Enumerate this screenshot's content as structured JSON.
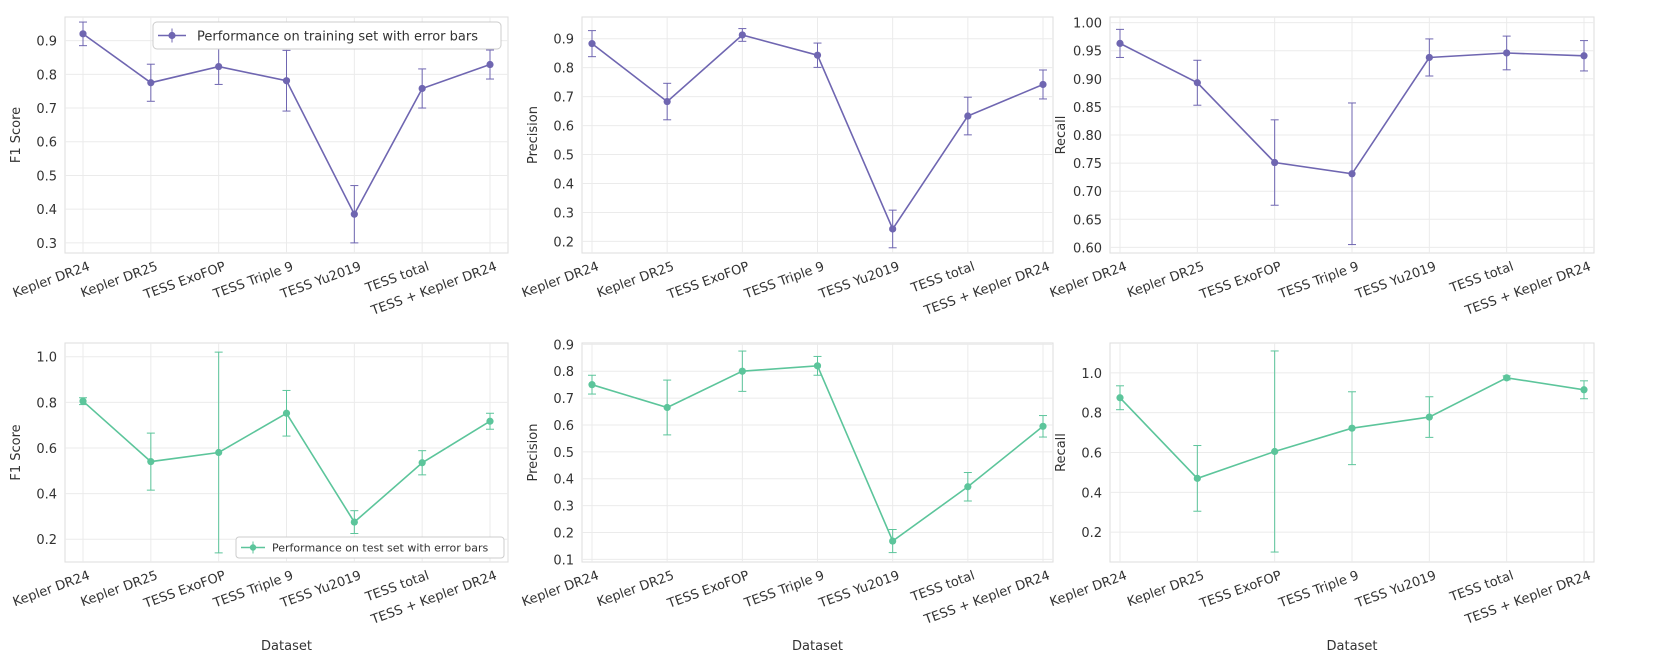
{
  "colors": {
    "train": "#6f66b1",
    "test": "#5cc59b",
    "grid": "#ebebeb",
    "frame": "#dddddd"
  },
  "legends": {
    "train": "Performance on training set with error bars",
    "test": "Performance on test set with error bars"
  },
  "chart_data": [
    {
      "type": "line",
      "title": "",
      "xlabel": "",
      "ylabel": "F1 Score",
      "categories": [
        "Kepler DR24",
        "Kepler DR25",
        "TESS ExoFOP",
        "TESS Triple 9",
        "TESS Yu2019",
        "TESS total",
        "TESS + Kepler DR24"
      ],
      "series": [
        {
          "name": "Performance on training set with error bars",
          "color": "#6f66b1",
          "values": [
            0.92,
            0.775,
            0.823,
            0.781,
            0.385,
            0.758,
            0.829
          ],
          "errors": [
            0.035,
            0.055,
            0.053,
            0.09,
            0.085,
            0.058,
            0.043
          ]
        }
      ],
      "ylim": [
        0.27,
        0.97
      ],
      "yticks": [
        0.3,
        0.4,
        0.5,
        0.6,
        0.7,
        0.8,
        0.9
      ],
      "ytick_labels": [
        "0.3",
        "0.4",
        "0.5",
        "0.6",
        "0.7",
        "0.8",
        "0.9"
      ],
      "legend": "top-right",
      "grid": true
    },
    {
      "type": "line",
      "title": "",
      "xlabel": "",
      "ylabel": "Precision",
      "categories": [
        "Kepler DR24",
        "Kepler DR25",
        "TESS ExoFOP",
        "TESS Triple 9",
        "TESS Yu2019",
        "TESS total",
        "TESS + Kepler DR24"
      ],
      "series": [
        {
          "name": "train",
          "color": "#6f66b1",
          "values": [
            0.883,
            0.683,
            0.913,
            0.843,
            0.243,
            0.633,
            0.742
          ],
          "errors": [
            0.045,
            0.063,
            0.022,
            0.042,
            0.065,
            0.065,
            0.05
          ]
        }
      ],
      "ylim": [
        0.16,
        0.975
      ],
      "yticks": [
        0.2,
        0.3,
        0.4,
        0.5,
        0.6,
        0.7,
        0.8,
        0.9
      ],
      "ytick_labels": [
        "0.2",
        "0.3",
        "0.4",
        "0.5",
        "0.6",
        "0.7",
        "0.8",
        "0.9"
      ],
      "legend": "none",
      "grid": true
    },
    {
      "type": "line",
      "title": "",
      "xlabel": "",
      "ylabel": "Recall",
      "categories": [
        "Kepler DR24",
        "Kepler DR25",
        "TESS ExoFOP",
        "TESS Triple 9",
        "TESS Yu2019",
        "TESS total",
        "TESS + Kepler DR24"
      ],
      "series": [
        {
          "name": "train",
          "color": "#6f66b1",
          "values": [
            0.963,
            0.893,
            0.751,
            0.731,
            0.938,
            0.946,
            0.941
          ],
          "errors": [
            0.025,
            0.04,
            0.076,
            0.126,
            0.033,
            0.03,
            0.027
          ]
        }
      ],
      "ylim": [
        0.59,
        1.01
      ],
      "yticks": [
        0.6,
        0.65,
        0.7,
        0.75,
        0.8,
        0.85,
        0.9,
        0.95,
        1.0
      ],
      "ytick_labels": [
        "0.60",
        "0.65",
        "0.70",
        "0.75",
        "0.80",
        "0.85",
        "0.90",
        "0.95",
        "1.00"
      ],
      "legend": "none",
      "grid": true
    },
    {
      "type": "line",
      "title": "",
      "xlabel": "Dataset",
      "ylabel": "F1 Score",
      "categories": [
        "Kepler DR24",
        "Kepler DR25",
        "TESS ExoFOP",
        "TESS Triple 9",
        "TESS Yu2019",
        "TESS total",
        "TESS + Kepler DR24"
      ],
      "series": [
        {
          "name": "Performance on test set with error bars",
          "color": "#5cc59b",
          "values": [
            0.805,
            0.54,
            0.58,
            0.752,
            0.275,
            0.535,
            0.717
          ],
          "errors": [
            0.015,
            0.125,
            0.44,
            0.1,
            0.05,
            0.053,
            0.035
          ]
        }
      ],
      "ylim": [
        0.1,
        1.06
      ],
      "yticks": [
        0.2,
        0.4,
        0.6,
        0.8,
        1.0
      ],
      "ytick_labels": [
        "0.2",
        "0.4",
        "0.6",
        "0.8",
        "1.0"
      ],
      "legend": "bottom-right",
      "grid": true
    },
    {
      "type": "line",
      "title": "",
      "xlabel": "Dataset",
      "ylabel": "Precision",
      "categories": [
        "Kepler DR24",
        "Kepler DR25",
        "TESS ExoFOP",
        "TESS Triple 9",
        "TESS Yu2019",
        "TESS total",
        "TESS + Kepler DR24"
      ],
      "series": [
        {
          "name": "test",
          "color": "#5cc59b",
          "values": [
            0.75,
            0.665,
            0.8,
            0.82,
            0.168,
            0.37,
            0.595
          ],
          "errors": [
            0.035,
            0.102,
            0.075,
            0.035,
            0.043,
            0.053,
            0.04
          ]
        }
      ],
      "ylim": [
        0.09,
        0.905
      ],
      "yticks": [
        0.1,
        0.2,
        0.3,
        0.4,
        0.5,
        0.6,
        0.7,
        0.8,
        0.9
      ],
      "ytick_labels": [
        "0.1",
        "0.2",
        "0.3",
        "0.4",
        "0.5",
        "0.6",
        "0.7",
        "0.8",
        "0.9"
      ],
      "legend": "none",
      "grid": true
    },
    {
      "type": "line",
      "title": "",
      "xlabel": "Dataset",
      "ylabel": "Recall",
      "categories": [
        "Kepler DR24",
        "Kepler DR25",
        "TESS ExoFOP",
        "TESS Triple 9",
        "TESS Yu2019",
        "TESS total",
        "TESS + Kepler DR24"
      ],
      "series": [
        {
          "name": "test",
          "color": "#5cc59b",
          "values": [
            0.875,
            0.47,
            0.605,
            0.722,
            0.778,
            0.975,
            0.915
          ],
          "errors": [
            0.06,
            0.165,
            0.505,
            0.183,
            0.102,
            0.01,
            0.045
          ]
        }
      ],
      "ylim": [
        0.05,
        1.15
      ],
      "yticks": [
        0.2,
        0.4,
        0.6,
        0.8,
        1.0
      ],
      "ytick_labels": [
        "0.2",
        "0.4",
        "0.6",
        "0.8",
        "1.0"
      ],
      "legend": "none",
      "grid": true
    }
  ]
}
